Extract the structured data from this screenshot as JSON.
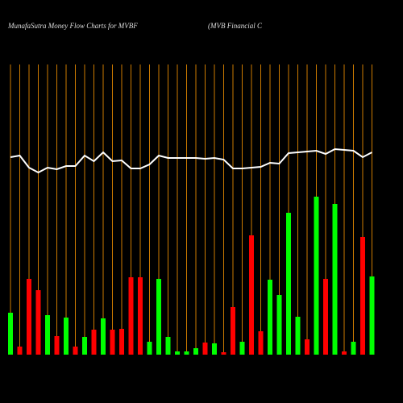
{
  "chart_data": {
    "type": "money-flow",
    "title": "MunafaSutra  Money Flow  Charts for MVBF",
    "subtitle": "(MVB Financial C",
    "categories": [
      null,
      null,
      null,
      null,
      null,
      null,
      null,
      null,
      null,
      null,
      null,
      null,
      null,
      null,
      null,
      null,
      null,
      null,
      null,
      null,
      null,
      null,
      null,
      null,
      null,
      null,
      null,
      null,
      null,
      null,
      null,
      null,
      null,
      null,
      null,
      null,
      null,
      null,
      null,
      null
    ],
    "series": [
      {
        "color": "#00ff00",
        "values": [
          52,
          null,
          null,
          null,
          49,
          null,
          46,
          null,
          22,
          null,
          45,
          null,
          null,
          null,
          null,
          16,
          94,
          22,
          4,
          4,
          8,
          null,
          14,
          null,
          null,
          16,
          null,
          null,
          93,
          74,
          176,
          47,
          null,
          196,
          null,
          187,
          null,
          16,
          null,
          97
        ]
      },
      {
        "color": "#ff0000",
        "values": [
          null,
          10,
          94,
          80,
          null,
          23,
          null,
          10,
          null,
          31,
          null,
          31,
          32,
          96,
          96,
          null,
          null,
          null,
          null,
          null,
          null,
          15,
          null,
          3,
          59,
          null,
          148,
          29,
          null,
          null,
          null,
          null,
          19,
          null,
          94,
          null,
          4,
          null,
          146,
          null
        ]
      },
      {
        "type": "line",
        "color": "#ffffff",
        "values": [
          245,
          247,
          232,
          226,
          232,
          230,
          234,
          234,
          247,
          240,
          251,
          240,
          241,
          231,
          231,
          236,
          247,
          244,
          244,
          244,
          244,
          243,
          244,
          242,
          231,
          231,
          232,
          233,
          238,
          237,
          250,
          251,
          252,
          253,
          249,
          255,
          254,
          253,
          245,
          251
        ]
      }
    ],
    "ylim": [
      0,
      360
    ],
    "grid_color": "#cc7a00",
    "grid": true
  }
}
